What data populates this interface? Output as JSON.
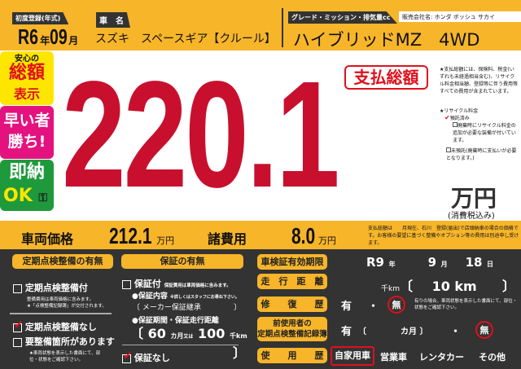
{
  "header": {
    "first_reg_label": "初度登録(年式)",
    "first_reg_era": "R6",
    "year_unit": "年",
    "first_reg_month": "09",
    "month_unit": "月",
    "name_label": "車　名",
    "car_name": "スズキ　スペースギア【クルール】",
    "grade_label": "グレード・ミッション・排気量cc",
    "dealer": "販売会社名: ホンダ ボッシュ サカイ",
    "grade": "ハイブリッドMZ　4WD"
  },
  "badges": {
    "anshin": "安心の",
    "sougaku": "総額",
    "hyouji": "表示",
    "hayai1": "早い者",
    "hayai2": "勝ち!",
    "sokuno": "即納",
    "ok": "OK"
  },
  "price": {
    "label": "支払総額",
    "total": "220.1",
    "unit": "万円",
    "tax": "(消費税込み)"
  },
  "notes": {
    "total_note": "★支払総額には、保険料、税金(いずれも未経過相当含む)、リサイクル料金相当額、登録等に伴う費用等すべての費用が含まれています。",
    "recycle_label": "★リサイクル料金",
    "deposited": "預託済み",
    "extra": "廃棄時にリサイクル料金の追加が必要な装備が付いています。",
    "not_deposited": "未預託(廃棄時に支払いが必要となります。)"
  },
  "band": {
    "vehicle_label": "車両価格",
    "vehicle_price": "212.1",
    "unit": "万円",
    "fees_label": "諸費用",
    "fees": "8.0",
    "note_pre": "支払総額は　　月現在、",
    "region": "石川",
    "note_post": "登録(届出)で店頭納車の場合の価格です。お客様の要望に基づく整備やオプション等の費用は別途申し受けます。"
  },
  "inspection": {
    "title": "定期点検整備の有無",
    "with": "定期点検整備付",
    "with_note1": "整備費用は車両価格に含みます。",
    "with_note2": "★「点検整備記録簿」が交付されます。",
    "without": "定期点検整備なし",
    "needs": "要整備箇所があります",
    "needs_note": "★車両状態を表示した書面にて、部位・状態をご確認下さい。"
  },
  "warranty": {
    "title": "保証の有無",
    "with": "保証付",
    "with_note": "保証費用は車両価格に含みます。",
    "content_label": "●保証内容",
    "content_note": "※詳しくはスタッフにお尋ね下さい。",
    "content": "メーカー保証継承",
    "period_label": "●保証期間・保証走行距離",
    "months": "60",
    "months_unit": "カ月",
    "or": "又は",
    "km": "100",
    "km_unit": "千km",
    "none": "保証なし"
  },
  "details": {
    "shaken_label": "車検証有効期限",
    "shaken_era": "R9",
    "y": "年",
    "shaken_month": "9",
    "m": "月",
    "shaken_day": "18",
    "d": "日",
    "mileage_label": "走　行　距　離",
    "mileage_unit": "千km",
    "mileage": "10 km",
    "repair_label": "修　　復　　歴",
    "ari": "有",
    "nashi": "無",
    "repair_note": "有りの場合、車両状態を表示した書面にて、部位・状態をご確認下さい。",
    "record_label1": "前使用者の",
    "record_label2": "定期点検整備記録簿",
    "record_months_unit": "カ月",
    "usage_label": "使　　用　　歴",
    "usage": [
      "自家用車",
      "営業車",
      "レンタカー",
      "その他"
    ]
  },
  "colors": {
    "yellow": "#f7b52a",
    "red": "#c8102e",
    "dark": "#333333",
    "pink": "#e4127f",
    "green": "#1e9a3c"
  }
}
